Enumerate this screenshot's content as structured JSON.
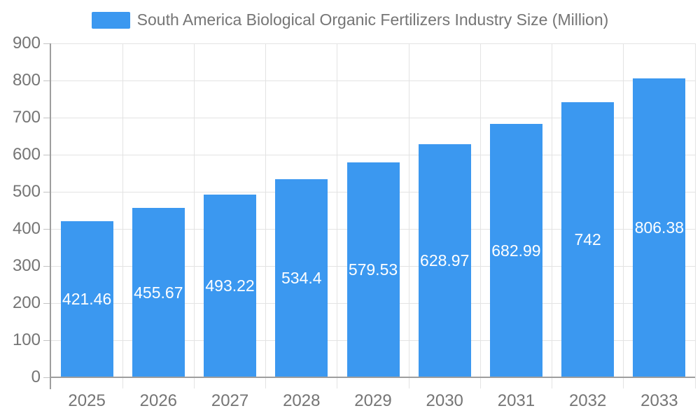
{
  "chart_data": {
    "type": "bar",
    "title": "South America Biological Organic Fertilizers Industry Size (Million)",
    "categories": [
      "2025",
      "2026",
      "2027",
      "2028",
      "2029",
      "2030",
      "2031",
      "2032",
      "2033"
    ],
    "values": [
      421.46,
      455.67,
      493.22,
      534.4,
      579.53,
      628.97,
      682.99,
      742,
      806.38
    ],
    "value_labels": [
      "421.46",
      "455.67",
      "493.22",
      "534.4",
      "579.53",
      "628.97",
      "682.99",
      "742",
      "806.38"
    ],
    "xlabel": "",
    "ylabel": "",
    "ylim": [
      0,
      900
    ],
    "ytick_step": 100,
    "ytick_labels": [
      "0",
      "100",
      "200",
      "300",
      "400",
      "500",
      "600",
      "700",
      "800",
      "900"
    ],
    "grid": true,
    "legend_position": "top-center",
    "colors": {
      "bar": "#3b98f0",
      "value_label": "#ffffff",
      "axis_text": "#757575",
      "axis_line": "#9e9e9e",
      "gridline": "#e3e3e3"
    }
  }
}
